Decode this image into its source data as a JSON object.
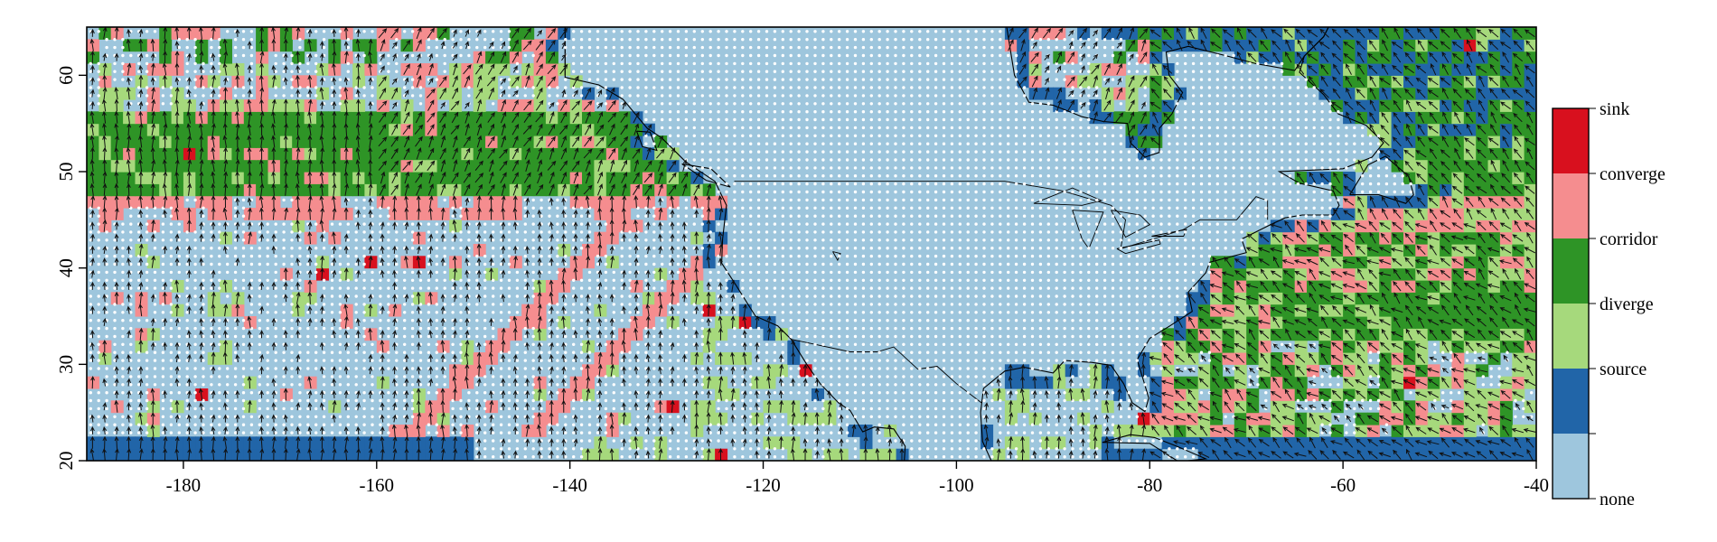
{
  "map": {
    "x_axis": {
      "range": [
        -190,
        -40
      ],
      "ticks": [
        {
          "value": -180,
          "label": "-180"
        },
        {
          "value": -160,
          "label": "-160"
        },
        {
          "value": -140,
          "label": "-140"
        },
        {
          "value": -120,
          "label": "-120"
        },
        {
          "value": -100,
          "label": "-100"
        },
        {
          "value": -80,
          "label": "-80"
        },
        {
          "value": -60,
          "label": "-60"
        },
        {
          "value": -40,
          "label": "-40"
        }
      ]
    },
    "y_axis": {
      "range": [
        20,
        65
      ],
      "ticks": [
        {
          "value": 20,
          "label": "20"
        },
        {
          "value": 30,
          "label": "30"
        },
        {
          "value": 40,
          "label": "40"
        },
        {
          "value": 50,
          "label": "50"
        },
        {
          "value": 60,
          "label": "60"
        }
      ]
    },
    "colors": {
      "none": "#9ec6dd",
      "source": "#2165a8",
      "diverge": "#a6d97c",
      "corridor": "#2e9426",
      "converge": "#f58d8f",
      "sink": "#d8101e"
    },
    "legend": {
      "placement": "right",
      "items": [
        {
          "label": "sink",
          "color": "#d8101e"
        },
        {
          "label": "converge",
          "color": "#f58d8f"
        },
        {
          "label": "corridor",
          "color": "#2e9426"
        },
        {
          "label": "diverge",
          "color": "#a6d97c"
        },
        {
          "label": "source",
          "color": "#2165a8"
        },
        {
          "label": "none",
          "color": "#9ec6dd"
        }
      ]
    }
  }
}
